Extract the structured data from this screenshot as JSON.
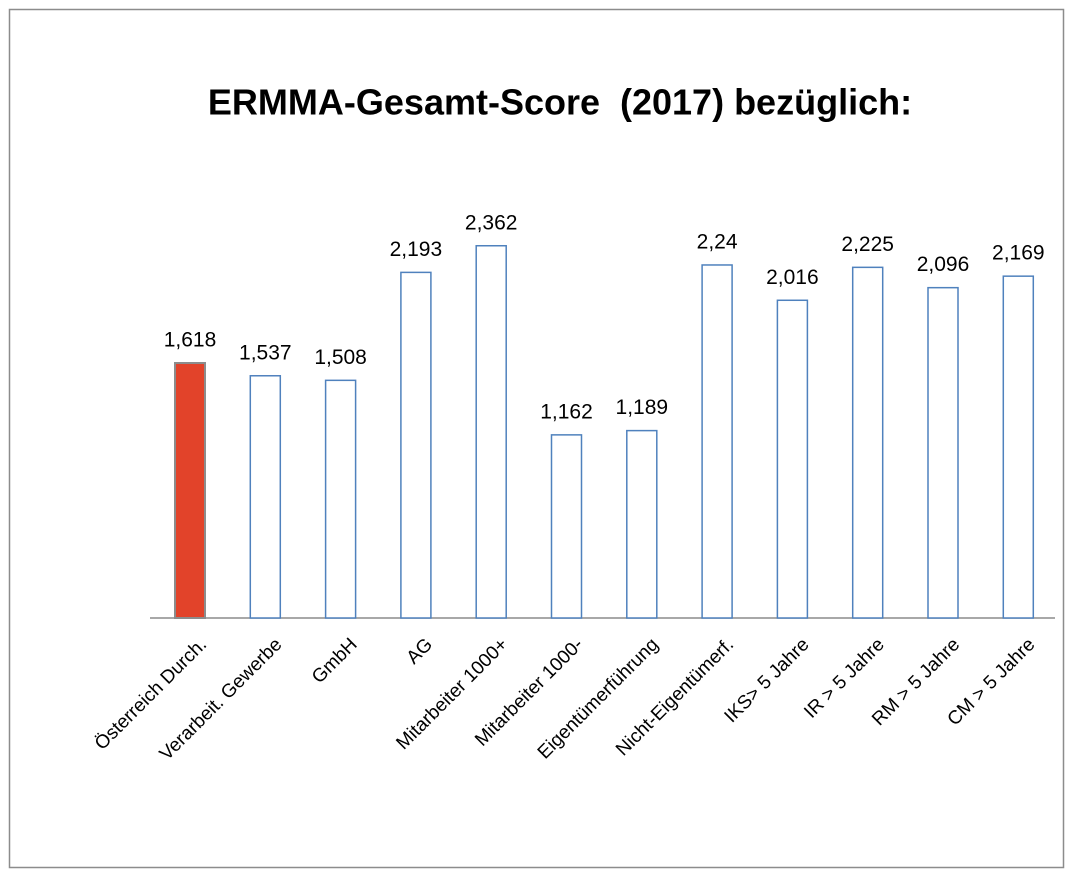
{
  "chart_data": {
    "type": "bar",
    "title": "ERMMA-Gesamt-Score  (2017) bezüglich:",
    "categories": [
      "Österreich Durch.",
      "Verarbeit. Gewerbe",
      "GmbH",
      "AG",
      "Mitarbeiter 1000+",
      "Mitarbeiter 1000-",
      "Eigentümerführung",
      "Nicht-Eigentümerf.",
      "IKS> 5 Jahre",
      "IR > 5 Jahre",
      "RM > 5 Jahre",
      "CM > 5 Jahre"
    ],
    "values": [
      1.618,
      1.537,
      1.508,
      2.193,
      2.362,
      1.162,
      1.189,
      2.24,
      2.016,
      2.225,
      2.096,
      2.169
    ],
    "value_labels": [
      "1,618",
      "1,537",
      "1,508",
      "2,193",
      "2,362",
      "1,162",
      "1,189",
      "2,24",
      "2,016",
      "2,225",
      "2,096",
      "2,169"
    ],
    "colors": [
      "#e2432a",
      "#ffffff",
      "#ffffff",
      "#ffffff",
      "#ffffff",
      "#ffffff",
      "#ffffff",
      "#ffffff",
      "#ffffff",
      "#ffffff",
      "#ffffff",
      "#ffffff"
    ]
  }
}
